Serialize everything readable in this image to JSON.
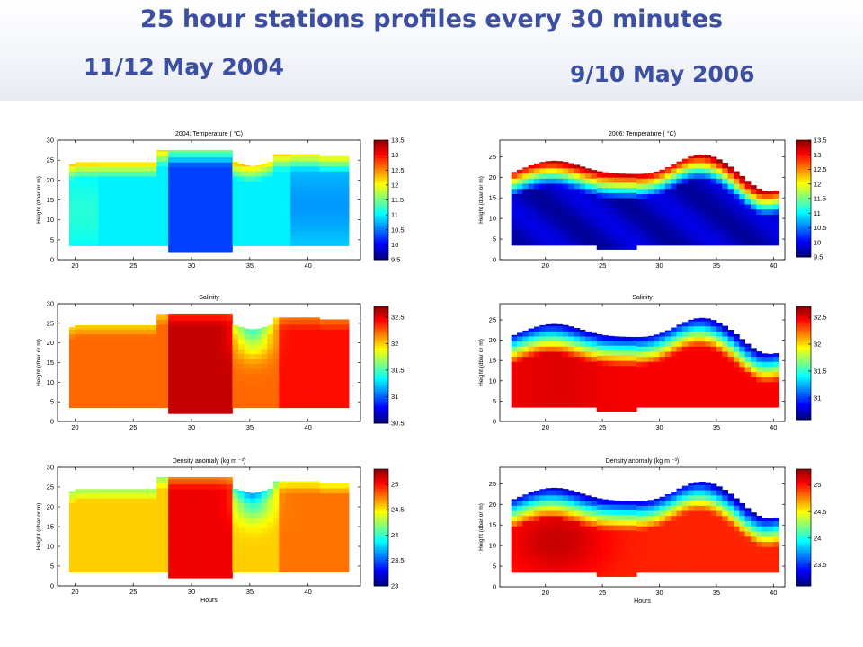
{
  "header": {
    "title": "25 hour stations profiles every 30 minutes",
    "date_left": "11/12 May 2004",
    "date_right": "9/10 May 2006"
  },
  "chart_data": [
    {
      "id": "t2004",
      "type": "heatmap",
      "title": "2004: Temperature ( °C)",
      "xlabel": "",
      "ylabel": "Height (dbar or m)",
      "xlim": [
        18.5,
        44.5
      ],
      "ylim": [
        0,
        30
      ],
      "xticks": [
        "20",
        "25",
        "30",
        "35",
        "40"
      ],
      "yticks": [
        "0",
        "5",
        "10",
        "15",
        "20",
        "25",
        "30"
      ],
      "colorbar": {
        "min": 9.5,
        "max": 13.5,
        "ticks": [
          "9.5",
          "10",
          "10.5",
          "11",
          "11.5",
          "12",
          "12.5",
          "13",
          "13.5"
        ]
      }
    },
    {
      "id": "t2006",
      "type": "heatmap",
      "title": "2006: Temperature ( °C)",
      "xlabel": "",
      "ylabel": "Height (dbar or m)",
      "xlim": [
        16,
        41
      ],
      "ylim": [
        0,
        29
      ],
      "xticks": [
        "20",
        "25",
        "30",
        "35",
        "40"
      ],
      "yticks": [
        "0",
        "5",
        "10",
        "15",
        "20",
        "25"
      ],
      "colorbar": {
        "min": 9.5,
        "max": 13.5,
        "ticks": [
          "9.5",
          "10",
          "10.5",
          "11",
          "11.5",
          "12",
          "12.5",
          "13",
          "13.5"
        ]
      }
    },
    {
      "id": "s2004",
      "type": "heatmap",
      "title": "Salinity",
      "xlabel": "",
      "ylabel": "Height (dbar or m)",
      "xlim": [
        18.5,
        44.5
      ],
      "ylim": [
        0,
        30
      ],
      "xticks": [
        "20",
        "25",
        "30",
        "35",
        "40"
      ],
      "yticks": [
        "0",
        "5",
        "10",
        "15",
        "20",
        "25",
        "30"
      ],
      "colorbar": {
        "min": 30.5,
        "max": 32.7,
        "ticks": [
          "30.5",
          "31",
          "31.5",
          "32",
          "32.5"
        ]
      }
    },
    {
      "id": "s2006",
      "type": "heatmap",
      "title": "Salinity",
      "xlabel": "",
      "ylabel": "Height (dbar or m)",
      "xlim": [
        16,
        41
      ],
      "ylim": [
        0,
        29
      ],
      "xticks": [
        "20",
        "25",
        "30",
        "35",
        "40"
      ],
      "yticks": [
        "0",
        "5",
        "10",
        "15",
        "20",
        "25"
      ],
      "colorbar": {
        "min": 30.6,
        "max": 32.7,
        "ticks": [
          "31",
          "31.5",
          "32",
          "32.5"
        ]
      }
    },
    {
      "id": "d2004",
      "type": "heatmap",
      "title": "Density anomaly (kg m ⁻³)",
      "xlabel": "Hours",
      "ylabel": "Height (dbar or m)",
      "xlim": [
        18.5,
        44.5
      ],
      "ylim": [
        0,
        30
      ],
      "xticks": [
        "20",
        "25",
        "30",
        "35",
        "40"
      ],
      "yticks": [
        "0",
        "5",
        "10",
        "15",
        "20",
        "25",
        "30"
      ],
      "colorbar": {
        "min": 23.0,
        "max": 25.3,
        "ticks": [
          "23",
          "23.5",
          "24",
          "24.5",
          "25"
        ]
      }
    },
    {
      "id": "d2006",
      "type": "heatmap",
      "title": "Density anomaly (kg m ⁻³)",
      "xlabel": "Hours",
      "ylabel": "Height (dbar or m)",
      "xlim": [
        16,
        41
      ],
      "ylim": [
        0,
        29
      ],
      "xticks": [
        "20",
        "25",
        "30",
        "35",
        "40"
      ],
      "yticks": [
        "0",
        "5",
        "10",
        "15",
        "20",
        "25"
      ],
      "colorbar": {
        "min": 23.1,
        "max": 25.3,
        "ticks": [
          "23.5",
          "24",
          "24.5",
          "25"
        ]
      }
    }
  ]
}
